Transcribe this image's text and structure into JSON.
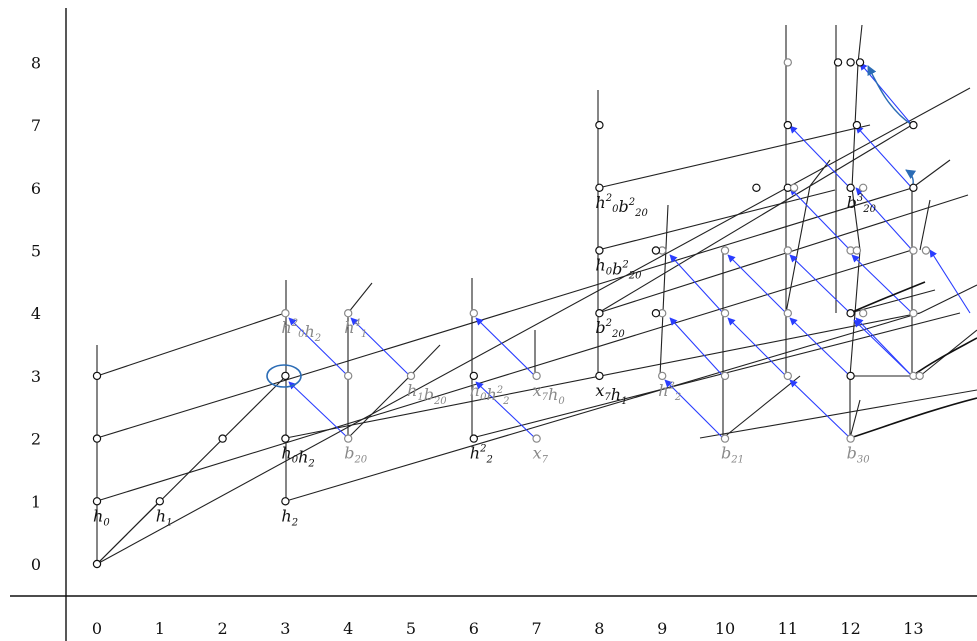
{
  "axes": {
    "x_ticks": [
      "0",
      "1",
      "2",
      "3",
      "4",
      "5",
      "6",
      "7",
      "8",
      "9",
      "10",
      "11",
      "12",
      "13"
    ],
    "y_ticks": [
      "0",
      "1",
      "2",
      "3",
      "4",
      "5",
      "6",
      "7",
      "8"
    ]
  },
  "labels": [
    {
      "id": "h0",
      "base": "h",
      "sub": "0",
      "sup": "",
      "x": 0,
      "y": 1,
      "color": "black"
    },
    {
      "id": "h1",
      "base": "h",
      "sub": "1",
      "sup": "",
      "x": 1,
      "y": 1,
      "color": "black"
    },
    {
      "id": "h2",
      "base": "h",
      "sub": "2",
      "sup": "",
      "x": 3,
      "y": 1,
      "color": "black"
    },
    {
      "id": "h0h2",
      "base": "h",
      "sub": "0",
      "mid": "h",
      "sub2": "2",
      "x": 3,
      "y": 2,
      "color": "black"
    },
    {
      "id": "h0sq_h2",
      "base": "h",
      "sup": "2",
      "sub": "0",
      "mid": "h",
      "sub2": "2",
      "x": 3,
      "y": 4,
      "color": "gray"
    },
    {
      "id": "h1_4",
      "base": "h",
      "sub": "1",
      "sup": "4",
      "x": 4,
      "y": 4,
      "color": "gray"
    },
    {
      "id": "b20",
      "base": "b",
      "sub": "20",
      "sup": "",
      "x": 4,
      "y": 2,
      "color": "gray"
    },
    {
      "id": "h1b20",
      "base": "h",
      "sub": "1",
      "mid": "b",
      "sub2": "20",
      "x": 5,
      "y": 3,
      "color": "gray"
    },
    {
      "id": "h2sq",
      "base": "h",
      "sub": "2",
      "sup": "2",
      "x": 6,
      "y": 2,
      "color": "black"
    },
    {
      "id": "h0h2sq",
      "base": "h",
      "sub": "0",
      "mid": "h",
      "sub2": "2",
      "sup2": "2",
      "x": 6,
      "y": 3,
      "color": "gray"
    },
    {
      "id": "x7",
      "base": "x",
      "sub": "7",
      "sup": "",
      "x": 7,
      "y": 2,
      "color": "gray"
    },
    {
      "id": "x7h0",
      "base": "x",
      "sub": "7",
      "mid": "h",
      "sub2": "0",
      "x": 7,
      "y": 3,
      "color": "gray"
    },
    {
      "id": "x7h1",
      "base": "x",
      "sub": "7",
      "mid": "h",
      "sub2": "1",
      "x": 8,
      "y": 3,
      "color": "black"
    },
    {
      "id": "b20sq",
      "base": "b",
      "sub": "20",
      "sup": "2",
      "x": 8,
      "y": 4,
      "color": "black"
    },
    {
      "id": "h0b20sq",
      "base": "h",
      "sub": "0",
      "mid": "b",
      "sub2": "20",
      "sup2": "2",
      "x": 8,
      "y": 5,
      "color": "black"
    },
    {
      "id": "h0sq_b20sq",
      "base": "h",
      "sup": "2",
      "sub": "0",
      "mid": "b",
      "sub2": "20",
      "sup2": "2",
      "x": 8,
      "y": 6,
      "color": "black"
    },
    {
      "id": "h2_3",
      "base": "h",
      "sub": "2",
      "sup": "3",
      "x": 9,
      "y": 3,
      "color": "gray"
    },
    {
      "id": "b21",
      "base": "b",
      "sub": "21",
      "sup": "",
      "x": 10,
      "y": 2,
      "color": "gray"
    },
    {
      "id": "b30",
      "base": "b",
      "sub": "30",
      "sup": "",
      "x": 12,
      "y": 2,
      "color": "gray"
    },
    {
      "id": "b20_3",
      "base": "b",
      "sub": "20",
      "sup": "3",
      "x": 12,
      "y": 6,
      "color": "black"
    }
  ]
}
